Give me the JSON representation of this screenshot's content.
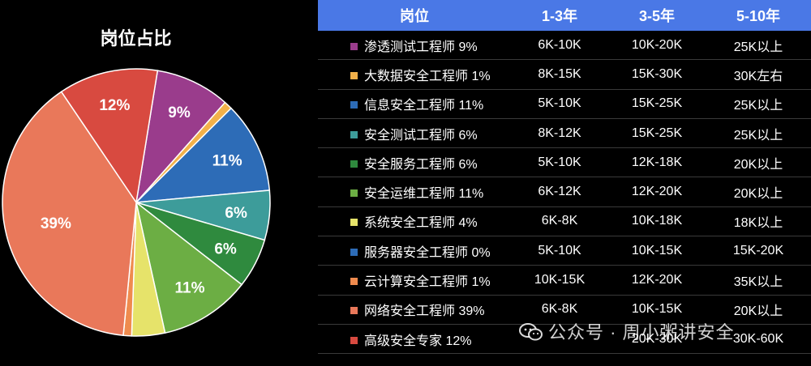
{
  "chart_data": {
    "type": "pie",
    "title": "岗位占比",
    "slices": [
      {
        "label": "渗透测试工程师",
        "value": 9,
        "color": "#9a3c8c",
        "text": "9%"
      },
      {
        "label": "大数据安全工程师",
        "value": 1,
        "color": "#f2b14a",
        "text": ""
      },
      {
        "label": "信息安全工程师",
        "value": 11,
        "color": "#2d6cb7",
        "text": "11%"
      },
      {
        "label": "安全测试工程师",
        "value": 6,
        "color": "#3d9c9a",
        "text": "6%"
      },
      {
        "label": "安全服务工程师",
        "value": 6,
        "color": "#2f8a3e",
        "text": "6%"
      },
      {
        "label": "安全运维工程师",
        "value": 11,
        "color": "#6cae44",
        "text": "11%"
      },
      {
        "label": "系统安全工程师",
        "value": 4,
        "color": "#e6e36a",
        "text": ""
      },
      {
        "label": "服务器安全工程师",
        "value": 0,
        "color": "#2d6cb7",
        "text": ""
      },
      {
        "label": "云计算安全工程师",
        "value": 1,
        "color": "#ef8b4e",
        "text": ""
      },
      {
        "label": "网络安全工程师",
        "value": 39,
        "color": "#e9785a",
        "text": "39%"
      },
      {
        "label": "高级安全专家",
        "value": 12,
        "color": "#d84a40",
        "text": "12%"
      }
    ]
  },
  "table": {
    "headers": [
      "岗位",
      "1-3年",
      "3-5年",
      "5-10年"
    ],
    "rows": [
      {
        "name": "渗透测试工程师 9%",
        "color": "#9a3c8c",
        "y1_3": "6K-10K",
        "y3_5": "10K-20K",
        "y5_10": "25K以上"
      },
      {
        "name": "大数据安全工程师 1%",
        "color": "#f2b14a",
        "y1_3": "8K-15K",
        "y3_5": "15K-30K",
        "y5_10": "30K左右"
      },
      {
        "name": "信息安全工程师 11%",
        "color": "#2d6cb7",
        "y1_3": "5K-10K",
        "y3_5": "15K-25K",
        "y5_10": "25K以上"
      },
      {
        "name": "安全测试工程师 6%",
        "color": "#3d9c9a",
        "y1_3": "8K-12K",
        "y3_5": "15K-25K",
        "y5_10": "25K以上"
      },
      {
        "name": "安全服务工程师 6%",
        "color": "#2f8a3e",
        "y1_3": "5K-10K",
        "y3_5": "12K-18K",
        "y5_10": "20K以上"
      },
      {
        "name": "安全运维工程师 11%",
        "color": "#6cae44",
        "y1_3": "6K-12K",
        "y3_5": "12K-20K",
        "y5_10": "20K以上"
      },
      {
        "name": "系统安全工程师 4%",
        "color": "#e6e36a",
        "y1_3": "6K-8K",
        "y3_5": "10K-18K",
        "y5_10": "18K以上"
      },
      {
        "name": "服务器安全工程师 0%",
        "color": "#2d6cb7",
        "y1_3": "5K-10K",
        "y3_5": "10K-15K",
        "y5_10": "15K-20K"
      },
      {
        "name": "云计算安全工程师 1%",
        "color": "#ef8b4e",
        "y1_3": "10K-15K",
        "y3_5": "12K-20K",
        "y5_10": "35K以上"
      },
      {
        "name": "网络安全工程师 39%",
        "color": "#e9785a",
        "y1_3": "6K-8K",
        "y3_5": "10K-15K",
        "y5_10": "20K以上"
      },
      {
        "name": "高级安全专家 12%",
        "color": "#d84a40",
        "y1_3": "",
        "y3_5": "20K-30K",
        "y5_10": "30K-60K"
      }
    ]
  },
  "watermark": {
    "text": "公众号 · 周小粥讲安全",
    "icon": "wechat-icon"
  }
}
